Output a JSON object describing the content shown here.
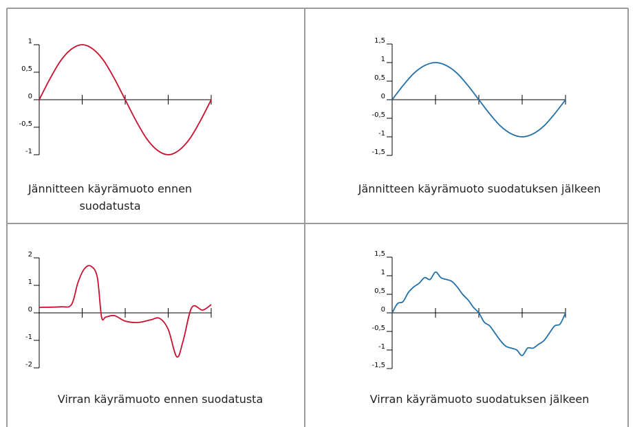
{
  "chart_data": [
    {
      "type": "line",
      "caption": "Jännitteen käyrämuoto ennen suodatusta",
      "color": "#c8102e",
      "x": [
        0,
        0.25,
        0.5,
        0.75,
        1,
        1.25,
        1.5,
        1.75,
        2,
        2.25,
        2.5,
        2.75,
        3,
        3.25,
        3.5,
        3.75,
        4
      ],
      "values": [
        0,
        0.38,
        0.71,
        0.92,
        1,
        0.92,
        0.71,
        0.38,
        0,
        -0.38,
        -0.71,
        -0.92,
        -1,
        -0.92,
        -0.71,
        -0.38,
        0
      ],
      "xlim": [
        0,
        4
      ],
      "xticks": [
        1,
        2,
        3,
        4
      ],
      "ylim": [
        -1,
        1
      ],
      "yticks": [
        -1,
        {
          "value": -0.5,
          "label": "-0,5"
        },
        0,
        {
          "value": 0.5,
          "label": "0,5"
        },
        1
      ]
    },
    {
      "type": "line",
      "caption": "Jännitteen käyrämuoto suodatuksen jälkeen",
      "color": "#1f6fa8",
      "x": [
        0,
        0.25,
        0.5,
        0.75,
        1,
        1.25,
        1.5,
        1.75,
        2,
        2.25,
        2.5,
        2.75,
        3,
        3.25,
        3.5,
        3.75,
        4
      ],
      "values": [
        0,
        0.38,
        0.71,
        0.92,
        1,
        0.92,
        0.71,
        0.38,
        0,
        -0.38,
        -0.71,
        -0.92,
        -1,
        -0.92,
        -0.71,
        -0.38,
        0
      ],
      "xlim": [
        0,
        4
      ],
      "xticks": [
        1,
        2,
        3,
        4
      ],
      "ylim": [
        -1.5,
        1.5
      ],
      "yticks": [
        {
          "value": -1.5,
          "label": "-1,5"
        },
        -1,
        {
          "value": -0.5,
          "label": "-0,5"
        },
        0,
        {
          "value": 0.5,
          "label": "0,5"
        },
        1,
        {
          "value": 1.5,
          "label": "1,5"
        }
      ]
    },
    {
      "type": "line",
      "caption": "Virran käyrämuoto ennen suodatusta",
      "color": "#c8102e",
      "x": [
        0,
        0.5,
        0.75,
        0.9,
        1.05,
        1.2,
        1.35,
        1.45,
        1.55,
        1.75,
        2.0,
        2.3,
        2.6,
        2.8,
        3.0,
        3.2,
        3.35,
        3.55,
        3.8,
        4
      ],
      "values": [
        0.2,
        0.22,
        0.3,
        1.1,
        1.6,
        1.7,
        1.3,
        -0.15,
        -0.15,
        -0.1,
        -0.3,
        -0.35,
        -0.25,
        -0.2,
        -0.6,
        -1.6,
        -1.0,
        0.2,
        0.1,
        0.3
      ],
      "xlim": [
        0,
        4
      ],
      "xticks": [
        1,
        2,
        3,
        4
      ],
      "ylim": [
        -2,
        2
      ],
      "yticks": [
        -2,
        -1,
        0,
        1,
        2
      ]
    },
    {
      "type": "line",
      "caption": "Virran käyrämuoto suodatuksen jälkeen",
      "color": "#1f6fa8",
      "x": [
        0,
        0.125,
        0.25,
        0.375,
        0.5,
        0.625,
        0.75,
        0.875,
        1,
        1.125,
        1.25,
        1.375,
        1.5,
        1.625,
        1.75,
        1.875,
        2,
        2.125,
        2.25,
        2.375,
        2.5,
        2.625,
        2.75,
        2.875,
        3,
        3.125,
        3.25,
        3.375,
        3.5,
        3.625,
        3.75,
        3.875,
        4
      ],
      "values": [
        0,
        0.25,
        0.3,
        0.55,
        0.7,
        0.8,
        0.95,
        0.9,
        1.1,
        0.95,
        0.9,
        0.85,
        0.7,
        0.5,
        0.35,
        0.15,
        0,
        -0.25,
        -0.35,
        -0.55,
        -0.75,
        -0.9,
        -0.95,
        -1,
        -1.15,
        -0.95,
        -0.95,
        -0.85,
        -0.75,
        -0.55,
        -0.35,
        -0.3,
        0
      ],
      "xlim": [
        0,
        4
      ],
      "xticks": [
        1,
        2,
        3,
        4
      ],
      "ylim": [
        -1.5,
        1.5
      ],
      "yticks": [
        {
          "value": -1.5,
          "label": "-1,5"
        },
        -1,
        {
          "value": -0.5,
          "label": "-0,5"
        },
        0,
        {
          "value": 0.5,
          "label": "0,5"
        },
        1,
        {
          "value": 1.5,
          "label": "1,5"
        }
      ]
    }
  ]
}
